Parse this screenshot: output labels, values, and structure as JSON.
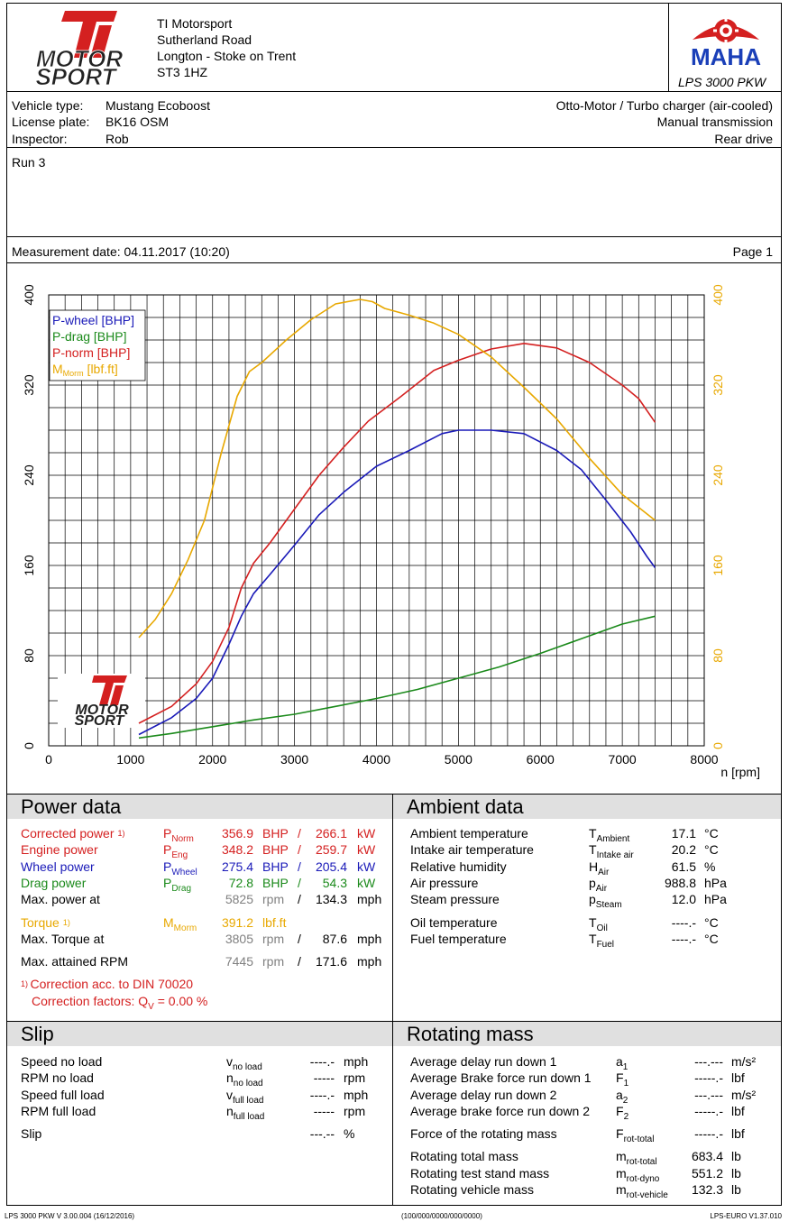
{
  "header": {
    "company": [
      "TI Motorsport",
      "Sutherland Road",
      "Longton - Stoke on Trent",
      "ST3 1HZ"
    ],
    "logo_top": "TI",
    "logo_text": "MOTOR SPORT",
    "maha_label": "MAHA",
    "product": "LPS 3000 PKW"
  },
  "vehicle": {
    "type_label": "Vehicle type:",
    "type": "Mustang Ecoboost",
    "plate_label": "License plate:",
    "plate": "BK16 OSM",
    "inspector_label": "Inspector:",
    "inspector": "Rob",
    "engine": "Otto-Motor / Turbo charger (air-cooled)",
    "transmission": "Manual transmission",
    "drive": "Rear drive"
  },
  "run": "Run 3",
  "measurement": {
    "date": "Measurement date: 04.11.2017 (10:20)",
    "page": "Page 1"
  },
  "chart_data": {
    "type": "line",
    "xlabel": "n [rpm]",
    "xlim": [
      0,
      8000
    ],
    "ylim": [
      0,
      400
    ],
    "xticks": [
      "0",
      "1000",
      "2000",
      "3000",
      "4000",
      "5000",
      "6000",
      "7000",
      "8000"
    ],
    "yticks": [
      "0",
      "80",
      "160",
      "240",
      "320",
      "400"
    ],
    "legend": [
      "P-wheel [BHP]",
      "P-drag [BHP]",
      "P-norm [BHP]",
      "M",
      "Morm",
      "[lbf.ft]"
    ],
    "grid": true,
    "series": [
      {
        "name": "P-wheel [BHP]",
        "color": "#1a1ab8",
        "x": [
          1100,
          1500,
          1800,
          2000,
          2200,
          2350,
          2500,
          2700,
          3000,
          3300,
          3600,
          4000,
          4400,
          4800,
          5000,
          5400,
          5800,
          6200,
          6500,
          6800,
          7100,
          7300,
          7400
        ],
        "y": [
          10,
          25,
          42,
          60,
          90,
          115,
          135,
          152,
          178,
          205,
          225,
          248,
          262,
          277,
          280,
          280,
          277,
          262,
          245,
          218,
          190,
          168,
          158
        ]
      },
      {
        "name": "P-drag [BHP]",
        "color": "#1b8a1b",
        "x": [
          1100,
          1500,
          2000,
          2500,
          3000,
          3500,
          4000,
          4500,
          5000,
          5500,
          6000,
          6500,
          7000,
          7400
        ],
        "y": [
          7,
          11,
          17,
          23,
          28,
          35,
          42,
          50,
          60,
          70,
          82,
          95,
          108,
          115
        ]
      },
      {
        "name": "P-norm [BHP]",
        "color": "#d42020",
        "x": [
          1100,
          1500,
          1800,
          2000,
          2200,
          2350,
          2500,
          2700,
          3000,
          3300,
          3600,
          3900,
          4300,
          4700,
          5000,
          5400,
          5800,
          6200,
          6600,
          7000,
          7200,
          7400
        ],
        "y": [
          20,
          35,
          55,
          75,
          105,
          140,
          162,
          180,
          210,
          240,
          265,
          288,
          310,
          333,
          342,
          352,
          357,
          353,
          340,
          320,
          308,
          287
        ]
      },
      {
        "name": "M Morm [lbf.ft]",
        "color": "#e8a800",
        "x": [
          1100,
          1300,
          1500,
          1700,
          1900,
          2100,
          2300,
          2450,
          2600,
          2900,
          3200,
          3500,
          3800,
          3950,
          4100,
          4400,
          4700,
          5000,
          5400,
          5800,
          6200,
          6600,
          7000,
          7400
        ],
        "y": [
          96,
          112,
          135,
          165,
          200,
          258,
          310,
          332,
          340,
          360,
          378,
          392,
          396,
          394,
          388,
          382,
          375,
          365,
          345,
          318,
          290,
          255,
          223,
          200
        ]
      }
    ]
  },
  "power": {
    "title": "Power data",
    "rows": [
      {
        "label": "Corrected power",
        "note": "1)",
        "sym": "P",
        "sub": "Norm",
        "v1": "356.9",
        "u1": "BHP",
        "sep": "/",
        "v2": "266.1",
        "u2": "kW"
      },
      {
        "label": "Engine power",
        "sym": "P",
        "sub": "Eng",
        "v1": "348.2",
        "u1": "BHP",
        "sep": "/",
        "v2": "259.7",
        "u2": "kW"
      },
      {
        "label": "Wheel power",
        "sym": "P",
        "sub": "Wheel",
        "v1": "275.4",
        "u1": "BHP",
        "sep": "/",
        "v2": "205.4",
        "u2": "kW"
      },
      {
        "label": "Drag power",
        "sym": "P",
        "sub": "Drag",
        "v1": "72.8",
        "u1": "BHP",
        "sep": "/",
        "v2": "54.3",
        "u2": "kW"
      },
      {
        "label": "Max. power at",
        "v1": "5825",
        "u1": "rpm",
        "sep": "/",
        "v2": "134.3",
        "u2": "mph"
      },
      {
        "label": "Torque",
        "note": "1)",
        "sym": "M",
        "sub": "Morm",
        "v1": "391.2",
        "u1": "lbf.ft"
      },
      {
        "label": "Max. Torque at",
        "v1": "3805",
        "u1": "rpm",
        "sep": "/",
        "v2": "87.6",
        "u2": "mph"
      },
      {
        "label": "Max. attained RPM",
        "v1": "7445",
        "u1": "rpm",
        "sep": "/",
        "v2": "171.6",
        "u2": "mph"
      }
    ],
    "footnote_mark": "1)",
    "footnote1": "Correction acc. to DIN 70020",
    "footnote2_a": "Correction factors: Q",
    "footnote2_sub": "V",
    "footnote2_b": " =   0.00 %"
  },
  "ambient": {
    "title": "Ambient data",
    "rows": [
      {
        "label": "Ambient temperature",
        "sym": "T",
        "sub": "Ambient",
        "val": "17.1",
        "unit": "°C"
      },
      {
        "label": "Intake air temperature",
        "sym": "T",
        "sub": "Intake air",
        "val": "20.2",
        "unit": "°C"
      },
      {
        "label": "Relative humidity",
        "sym": "H",
        "sub": "Air",
        "val": "61.5",
        "unit": "%"
      },
      {
        "label": "Air pressure",
        "sym": "p",
        "sub": "Air",
        "val": "988.8",
        "unit": "hPa"
      },
      {
        "label": "Steam pressure",
        "sym": "p",
        "sub": "Steam",
        "val": "12.0",
        "unit": "hPa"
      },
      {
        "label": "Oil temperature",
        "sym": "T",
        "sub": "Oil",
        "val": "----.-",
        "unit": "°C"
      },
      {
        "label": "Fuel temperature",
        "sym": "T",
        "sub": "Fuel",
        "val": "----.-",
        "unit": "°C"
      }
    ]
  },
  "slip": {
    "title": "Slip",
    "rows": [
      {
        "label": "Speed no load",
        "sym": "v",
        "sub": "no load",
        "val": "----.-",
        "unit": "mph"
      },
      {
        "label": "RPM no load",
        "sym": "n",
        "sub": "no load",
        "val": "-----",
        "unit": "rpm"
      },
      {
        "label": "Speed full load",
        "sym": "v",
        "sub": "full load",
        "val": "----.-",
        "unit": "mph"
      },
      {
        "label": "RPM full load",
        "sym": "n",
        "sub": "full load",
        "val": "-----",
        "unit": "rpm"
      },
      {
        "label": "Slip",
        "val": "---.--",
        "unit": "%"
      }
    ]
  },
  "rotating": {
    "title": "Rotating mass",
    "rows": [
      {
        "label": "Average delay run down 1",
        "sym": "a",
        "sub": "1",
        "val": "---.---",
        "unit": "m/s²"
      },
      {
        "label": "Average Brake force run down 1",
        "sym": "F",
        "sub": "1",
        "val": "-----.-",
        "unit": "lbf"
      },
      {
        "label": "Average delay run down 2",
        "sym": "a",
        "sub": "2",
        "val": "---.---",
        "unit": "m/s²"
      },
      {
        "label": "Average brake force run down 2",
        "sym": "F",
        "sub": "2",
        "val": "-----.-",
        "unit": "lbf"
      },
      {
        "label": "Force of the rotating mass",
        "sym": "F",
        "sub": "rot-total",
        "val": "-----.-",
        "unit": "lbf"
      },
      {
        "label": "Rotating total mass",
        "sym": "m",
        "sub": "rot-total",
        "val": "683.4",
        "unit": "lb"
      },
      {
        "label": "Rotating test stand mass",
        "sym": "m",
        "sub": "rot-dyno",
        "val": "551.2",
        "unit": "lb"
      },
      {
        "label": "Rotating vehicle mass",
        "sym": "m",
        "sub": "rot-vehicle",
        "val": "132.3",
        "unit": "lb"
      }
    ]
  },
  "footer": {
    "left": "LPS 3000 PKW V 3.00.004 (16/12/2016)",
    "center": "(100/000/0000/000/0000)",
    "right": "LPS-EURO V1.37.010"
  }
}
